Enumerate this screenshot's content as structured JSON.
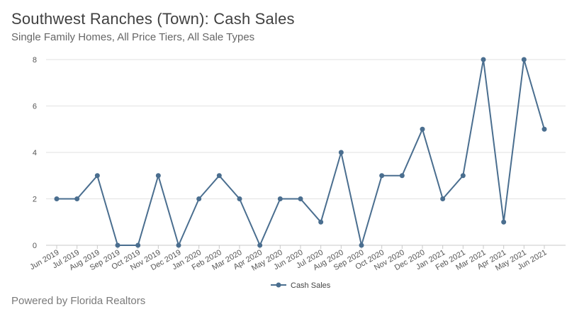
{
  "header": {
    "title": "Southwest Ranches (Town): Cash Sales",
    "subtitle": "Single Family Homes, All Price Tiers, All Sale Types"
  },
  "footer": {
    "credit": "Powered by Florida Realtors"
  },
  "colors": {
    "series": "#4a6e8f",
    "grid": "#e2e2e2",
    "axis": "#c8c8c8"
  },
  "chart_data": {
    "type": "line",
    "title": "Southwest Ranches (Town): Cash Sales",
    "subtitle": "Single Family Homes, All Price Tiers, All Sale Types",
    "xlabel": "",
    "ylabel": "",
    "ylim": [
      0,
      8
    ],
    "yticks": [
      0,
      2,
      4,
      6,
      8
    ],
    "grid": true,
    "legend": "bottom-center",
    "categories": [
      "Jun 2019",
      "Jul 2019",
      "Aug 2019",
      "Sep 2019",
      "Oct 2019",
      "Nov 2019",
      "Dec 2019",
      "Jan 2020",
      "Feb 2020",
      "Mar 2020",
      "Apr 2020",
      "May 2020",
      "Jun 2020",
      "Jul 2020",
      "Aug 2020",
      "Sep 2020",
      "Oct 2020",
      "Nov 2020",
      "Dec 2020",
      "Jan 2021",
      "Feb 2021",
      "Mar 2021",
      "Apr 2021",
      "May 2021",
      "Jun 2021"
    ],
    "series": [
      {
        "name": "Cash Sales",
        "values": [
          2,
          2,
          3,
          0,
          0,
          3,
          0,
          2,
          3,
          2,
          0,
          2,
          2,
          1,
          4,
          0,
          3,
          3,
          5,
          2,
          3,
          8,
          1,
          8,
          5
        ]
      }
    ]
  }
}
